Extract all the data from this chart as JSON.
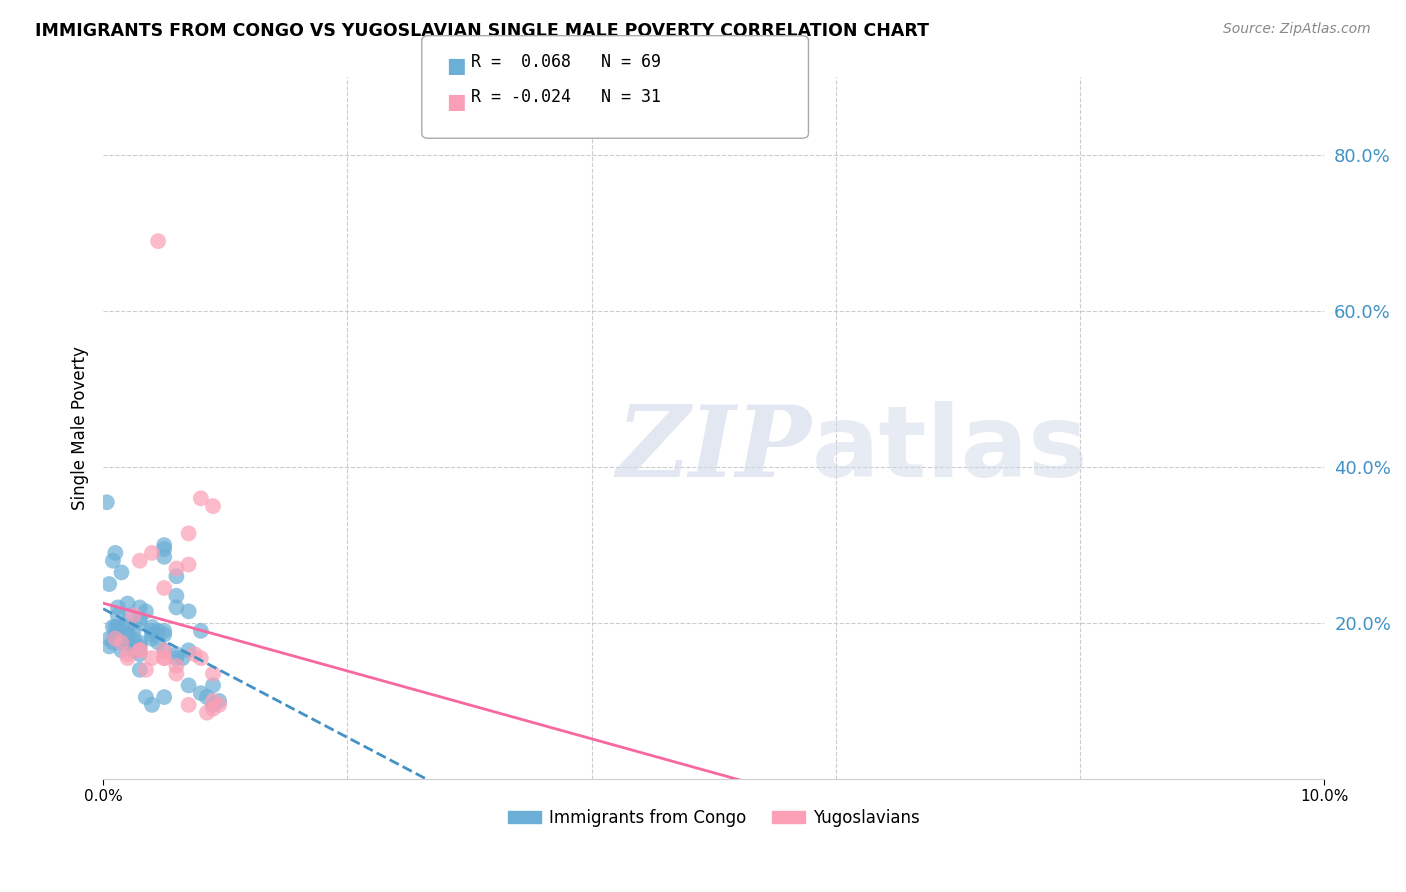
{
  "title": "IMMIGRANTS FROM CONGO VS YUGOSLAVIAN SINGLE MALE POVERTY CORRELATION CHART",
  "source": "Source: ZipAtlas.com",
  "ylabel": "Single Male Poverty",
  "legend1_label": "Immigrants from Congo",
  "legend2_label": "Yugoslavians",
  "r1": 0.068,
  "n1": 69,
  "r2": -0.024,
  "n2": 31,
  "xlim": [
    0.0,
    0.1
  ],
  "ylim": [
    0.0,
    0.9
  ],
  "yticks_right": [
    0.2,
    0.4,
    0.6,
    0.8
  ],
  "ytick_labels_right": [
    "20.0%",
    "40.0%",
    "60.0%",
    "80.0%"
  ],
  "color_blue": "#6baed6",
  "color_blue_dark": "#4292c6",
  "color_pink": "#fa9fb5",
  "color_pink_dark": "#f768a1",
  "color_axis_right": "#4292c6",
  "color_grid": "#cccccc",
  "watermark_zip": "ZIP",
  "watermark_atlas": "atlas",
  "blue_x": [
    0.0012,
    0.0015,
    0.0018,
    0.002,
    0.0022,
    0.0025,
    0.003,
    0.003,
    0.003,
    0.0035,
    0.004,
    0.004,
    0.0045,
    0.005,
    0.005,
    0.005,
    0.006,
    0.006,
    0.006,
    0.007,
    0.0008,
    0.001,
    0.001,
    0.0012,
    0.0012,
    0.0015,
    0.0015,
    0.002,
    0.002,
    0.0025,
    0.0025,
    0.003,
    0.003,
    0.004,
    0.0045,
    0.005,
    0.005,
    0.006,
    0.007,
    0.008,
    0.0005,
    0.0005,
    0.0008,
    0.001,
    0.0012,
    0.0015,
    0.002,
    0.0025,
    0.003,
    0.0035,
    0.004,
    0.005,
    0.006,
    0.0065,
    0.007,
    0.008,
    0.0085,
    0.009,
    0.009,
    0.0095,
    0.0003,
    0.0005,
    0.0008,
    0.001,
    0.0015,
    0.002,
    0.003,
    0.004,
    0.005
  ],
  "blue_y": [
    0.19,
    0.195,
    0.18,
    0.185,
    0.21,
    0.19,
    0.2,
    0.17,
    0.22,
    0.215,
    0.18,
    0.195,
    0.19,
    0.3,
    0.285,
    0.295,
    0.22,
    0.235,
    0.26,
    0.215,
    0.195,
    0.195,
    0.18,
    0.21,
    0.22,
    0.175,
    0.165,
    0.195,
    0.185,
    0.18,
    0.165,
    0.16,
    0.175,
    0.185,
    0.175,
    0.165,
    0.19,
    0.155,
    0.165,
    0.19,
    0.18,
    0.17,
    0.175,
    0.185,
    0.195,
    0.18,
    0.175,
    0.165,
    0.14,
    0.105,
    0.095,
    0.105,
    0.16,
    0.155,
    0.12,
    0.11,
    0.105,
    0.095,
    0.12,
    0.1,
    0.355,
    0.25,
    0.28,
    0.29,
    0.265,
    0.225,
    0.205,
    0.19,
    0.185
  ],
  "pink_x": [
    0.001,
    0.0015,
    0.002,
    0.003,
    0.0035,
    0.004,
    0.0045,
    0.005,
    0.005,
    0.006,
    0.006,
    0.007,
    0.0075,
    0.008,
    0.009,
    0.009,
    0.0095,
    0.0025,
    0.003,
    0.004,
    0.005,
    0.006,
    0.007,
    0.008,
    0.009,
    0.002,
    0.003,
    0.005,
    0.007,
    0.0085,
    0.009
  ],
  "pink_y": [
    0.18,
    0.175,
    0.155,
    0.165,
    0.14,
    0.155,
    0.69,
    0.155,
    0.165,
    0.135,
    0.145,
    0.275,
    0.16,
    0.155,
    0.135,
    0.1,
    0.095,
    0.21,
    0.28,
    0.29,
    0.245,
    0.27,
    0.315,
    0.36,
    0.35,
    0.16,
    0.165,
    0.155,
    0.095,
    0.085,
    0.09
  ]
}
